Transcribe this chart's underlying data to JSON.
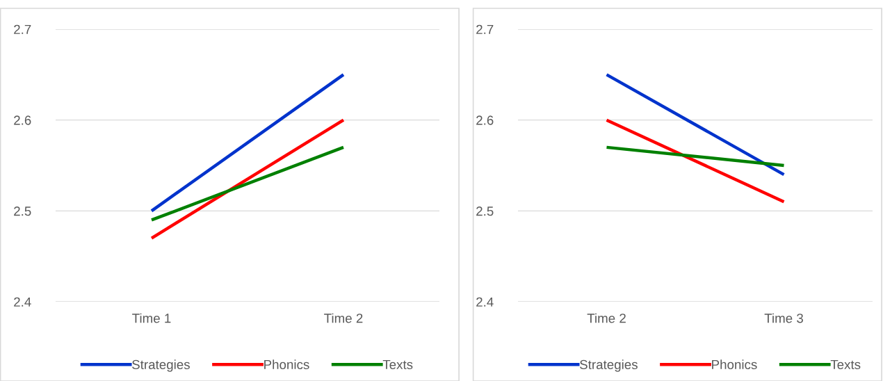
{
  "chart_data": [
    {
      "type": "line",
      "categories": [
        "Time 1",
        "Time 2"
      ],
      "ylim": [
        2.4,
        2.7
      ],
      "yticks": [
        2.4,
        2.5,
        2.6,
        2.7
      ],
      "grid": "y",
      "legend": "bottom",
      "marker": "none",
      "line_style": "solid",
      "series": [
        {
          "name": "Strategies",
          "color": "#0033cc",
          "values": [
            2.5,
            2.65
          ]
        },
        {
          "name": "Phonics",
          "color": "#ff0000",
          "values": [
            2.47,
            2.6
          ]
        },
        {
          "name": "Texts",
          "color": "#008000",
          "values": [
            2.49,
            2.57
          ]
        }
      ]
    },
    {
      "type": "line",
      "categories": [
        "Time 2",
        "Time 3"
      ],
      "ylim": [
        2.4,
        2.7
      ],
      "yticks": [
        2.4,
        2.5,
        2.6,
        2.7
      ],
      "grid": "y",
      "legend": "bottom",
      "marker": "none",
      "line_style": "solid",
      "series": [
        {
          "name": "Strategies",
          "color": "#0033cc",
          "values": [
            2.65,
            2.54
          ]
        },
        {
          "name": "Phonics",
          "color": "#ff0000",
          "values": [
            2.6,
            2.51
          ]
        },
        {
          "name": "Texts",
          "color": "#008000",
          "values": [
            2.57,
            2.55
          ]
        }
      ]
    }
  ]
}
